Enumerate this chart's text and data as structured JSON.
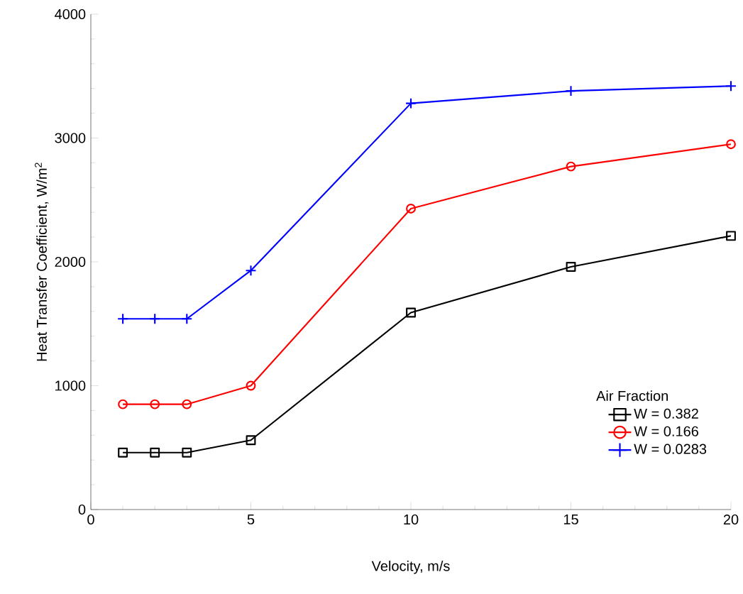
{
  "chart_data": {
    "type": "line",
    "xlabel": "Velocity, m/s",
    "ylabel": "Heat Transfer Coefficient, W/m$^{2}$",
    "legend_title": "Air Fraction",
    "x": [
      1,
      2,
      3,
      5,
      10,
      15,
      20
    ],
    "series": [
      {
        "name": "W = 0.382",
        "color": "#000000",
        "marker": "square",
        "values": [
          460,
          460,
          460,
          560,
          1590,
          1960,
          2210
        ]
      },
      {
        "name": "W = 0.166",
        "color": "#ff0000",
        "marker": "circle",
        "values": [
          850,
          850,
          850,
          1000,
          2430,
          2770,
          2950
        ]
      },
      {
        "name": "W = 0.0283",
        "color": "#0000ff",
        "marker": "cross",
        "values": [
          1540,
          1540,
          1540,
          1930,
          3280,
          3380,
          3420
        ]
      }
    ],
    "xlim": [
      0,
      20
    ],
    "xticks": [
      0,
      5,
      10,
      15,
      20
    ],
    "ylim": [
      0,
      4000
    ],
    "yticks": [
      0,
      1000,
      2000,
      3000,
      4000
    ],
    "grid": false,
    "legend": "bottom right",
    "line_style": "solid"
  }
}
